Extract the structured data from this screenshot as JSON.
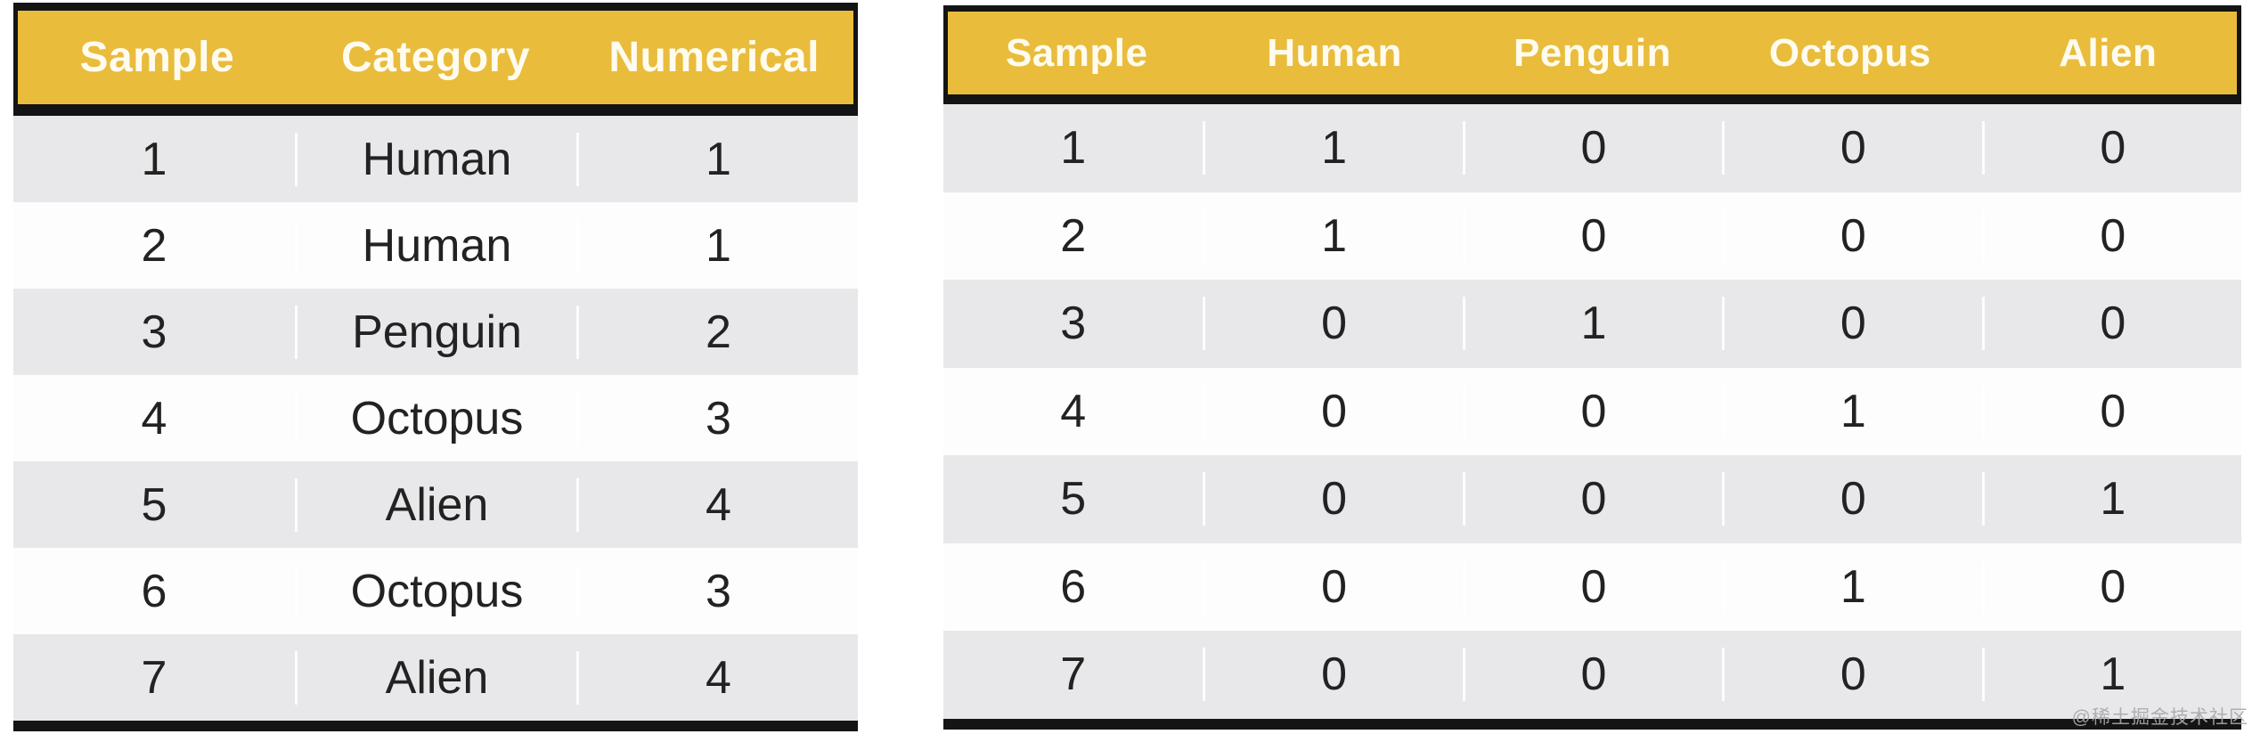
{
  "colors": {
    "header_bg": "#E9BC3C",
    "header_text": "#FFFCEF",
    "border": "#141414",
    "row_alt": "#E8E7E9",
    "row_white": "#FDFDFD",
    "cell_text": "#222222",
    "watermark": "#A8A8A8"
  },
  "watermark": {
    "text": "@稀土掘金技术社区"
  },
  "chart_data": [
    {
      "type": "table",
      "columns": [
        "Sample",
        "Category",
        "Numerical"
      ],
      "rows": [
        [
          1,
          "Human",
          1
        ],
        [
          2,
          "Human",
          1
        ],
        [
          3,
          "Penguin",
          2
        ],
        [
          4,
          "Octopus",
          3
        ],
        [
          5,
          "Alien",
          4
        ],
        [
          6,
          "Octopus",
          3
        ],
        [
          7,
          "Alien",
          4
        ]
      ],
      "layout": {
        "header_fill": "gold",
        "banded_rows": true,
        "legend": "none"
      }
    },
    {
      "type": "table",
      "columns": [
        "Sample",
        "Human",
        "Penguin",
        "Octopus",
        "Alien"
      ],
      "rows": [
        [
          1,
          1,
          0,
          0,
          0
        ],
        [
          2,
          1,
          0,
          0,
          0
        ],
        [
          3,
          0,
          1,
          0,
          0
        ],
        [
          4,
          0,
          0,
          1,
          0
        ],
        [
          5,
          0,
          0,
          0,
          1
        ],
        [
          6,
          0,
          0,
          1,
          0
        ],
        [
          7,
          0,
          0,
          0,
          1
        ]
      ],
      "layout": {
        "header_fill": "gold",
        "banded_rows": true,
        "legend": "none"
      }
    }
  ]
}
